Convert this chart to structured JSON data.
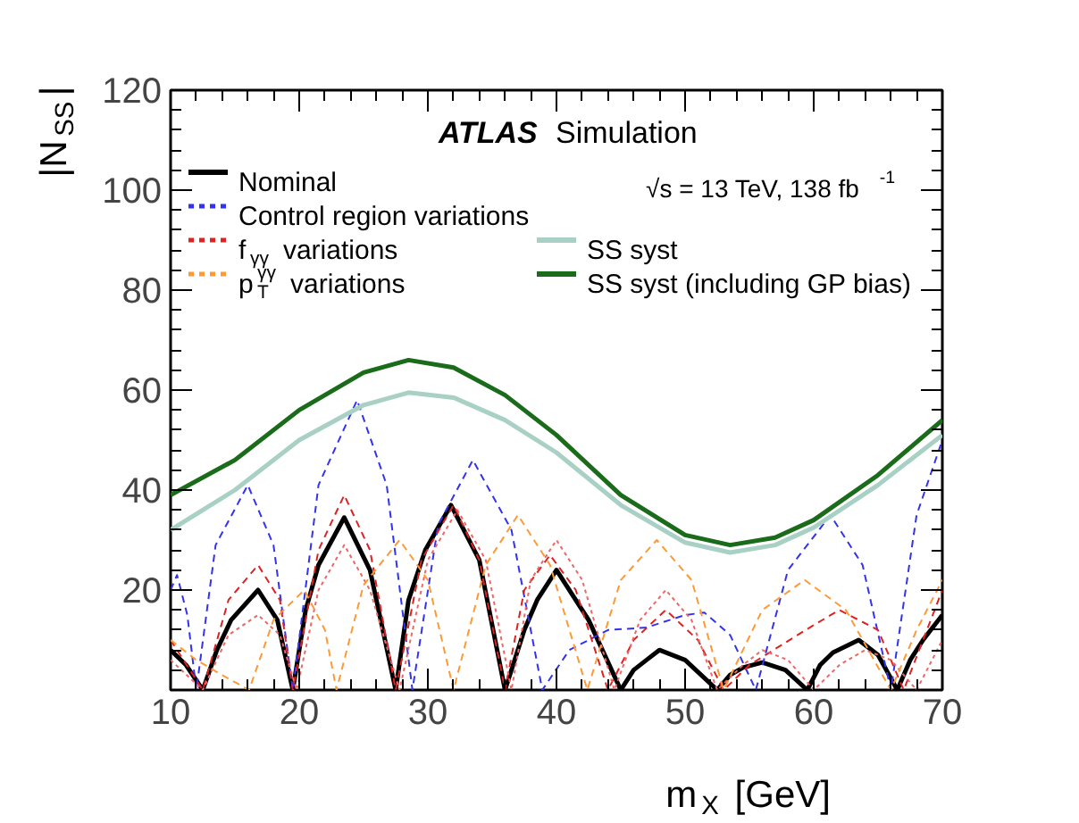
{
  "chart_data": {
    "type": "line",
    "xlabel": "m$_{X}$ [GeV]",
    "ylabel": "|N$_{SS}$|",
    "annotations": [
      "ATLAS Simulation",
      "√s = 13 TeV, 138 fb$^{-1}$"
    ],
    "xlim": [
      10,
      70
    ],
    "ylim": [
      0,
      120
    ],
    "xticks": [
      10,
      20,
      30,
      40,
      50,
      60,
      70
    ],
    "yticks": [
      {
        "value": 0,
        "label": null
      },
      20,
      40,
      60,
      80,
      100,
      120
    ],
    "grid": false,
    "legend": "top left",
    "tick_labels": true,
    "series": [
      {
        "name": "Nominal",
        "color": "#000000",
        "line_style": "solid",
        "x": [
          10,
          11.2,
          12.5,
          13.6,
          14.7,
          16.8,
          18.3,
          19.5,
          20.5,
          21.5,
          23.5,
          25.5,
          27.5,
          28.5,
          29.8,
          31.8,
          34,
          36,
          37.5,
          38.5,
          40,
          42.5,
          45,
          46,
          47,
          48,
          50,
          52.5,
          53.5,
          54.5,
          56,
          57.8,
          59.5,
          60.5,
          61.5,
          63.5,
          65,
          66.5,
          67.5,
          68.5,
          70
        ],
        "values": [
          8,
          5,
          0,
          8,
          14,
          20,
          14,
          0,
          16,
          25,
          34.5,
          24,
          0,
          18,
          28,
          37,
          26,
          0,
          12,
          18,
          24,
          14,
          0,
          4,
          6,
          8,
          6,
          0,
          3,
          4.5,
          5.5,
          4,
          0,
          5,
          7.5,
          10,
          7,
          0,
          6,
          10,
          15
        ]
      },
      {
        "name": "Control region variations",
        "color": "#3333ee",
        "line_style": "dashed",
        "x": [
          10,
          10.5,
          11.3,
          12,
          13.5,
          16,
          18,
          19.5,
          21.5,
          24.5,
          26.8,
          28.8,
          30.8,
          33.5,
          36.5,
          38.9,
          41,
          44,
          47,
          50,
          51.5,
          53.5,
          55.5,
          58,
          61.3,
          63.8,
          66,
          68,
          70
        ],
        "values": [
          20,
          23,
          15,
          0,
          29,
          41,
          29,
          0,
          41,
          58,
          41,
          0,
          33,
          46,
          32,
          0,
          8,
          12,
          12.5,
          15,
          15.5,
          11,
          0,
          24,
          35,
          25,
          0,
          35,
          50
        ]
      },
      {
        "name": "f$_{γγ}$ variations",
        "color": "#dd2222",
        "line_style": "dashed",
        "x": [
          10,
          12.5,
          14.5,
          16.8,
          18.5,
          19.5,
          21.5,
          23.5,
          25.5,
          27.5,
          29.5,
          32,
          34,
          36,
          37.5,
          39.5,
          41.5,
          44,
          46,
          48.5,
          51,
          53,
          55,
          57.5,
          60,
          62,
          65,
          67,
          70
        ],
        "values": [
          10,
          0,
          18,
          25,
          18,
          0,
          28,
          39,
          28,
          0,
          26,
          37,
          26,
          0,
          20,
          27,
          20,
          0,
          10,
          16,
          10,
          0,
          5,
          9,
          13,
          16,
          12,
          0,
          20
        ]
      },
      {
        "color": "#ee6666",
        "line_style": "dotted",
        "x": [
          10,
          12.5,
          14.5,
          16.8,
          18.5,
          19.8,
          21.5,
          23.5,
          25.5,
          27.8,
          30,
          32.3,
          34.5,
          36.5,
          38,
          40,
          42,
          44.5,
          46.5,
          48.5,
          50.5,
          52.5,
          54.5,
          56,
          58,
          60,
          62,
          64,
          66,
          68,
          70
        ],
        "values": [
          6,
          0,
          11,
          15,
          11,
          0,
          20,
          29,
          20,
          0,
          26,
          36,
          26,
          0,
          22,
          30,
          22,
          0,
          14,
          20,
          14,
          0,
          5,
          8,
          6,
          0,
          5,
          8,
          6,
          0,
          10
        ]
      },
      {
        "name": "p$_{T}$$^{γγ}$ variations",
        "color": "#ff9933",
        "line_style": "dashed",
        "x": [
          10,
          12,
          14,
          16.1,
          18,
          20.4,
          22,
          22.9,
          25,
          27.8,
          30,
          32,
          34.5,
          37,
          39.5,
          42.4,
          45,
          47.8,
          50.5,
          53,
          56,
          59.3,
          62.5,
          66,
          68,
          70
        ],
        "values": [
          10,
          6,
          3,
          0,
          14,
          20,
          12,
          0,
          21,
          30,
          22,
          0,
          25,
          35,
          25,
          0,
          22,
          30,
          22,
          0,
          16,
          22,
          16,
          0,
          12,
          22
        ]
      },
      {
        "name": "SS syst",
        "color": "#a8d0c4",
        "line_style": "solid",
        "x": [
          10,
          15,
          20,
          25,
          28.5,
          32,
          36,
          40,
          45,
          50,
          53.5,
          57,
          60,
          65,
          70
        ],
        "values": [
          32,
          40,
          50,
          57,
          59.5,
          58.5,
          54,
          47.5,
          37,
          29.5,
          27.5,
          29,
          32.5,
          41,
          51
        ]
      },
      {
        "name": "SS syst (including GP bias)",
        "color": "#1a6b1a",
        "line_style": "solid",
        "x": [
          10,
          15,
          20,
          25,
          28.5,
          32,
          36,
          40,
          45,
          50,
          53.5,
          57,
          60,
          65,
          70
        ],
        "values": [
          39,
          46,
          56,
          63.5,
          66,
          64.5,
          59,
          51,
          39,
          31,
          29,
          30.5,
          34,
          43,
          54
        ]
      }
    ]
  }
}
